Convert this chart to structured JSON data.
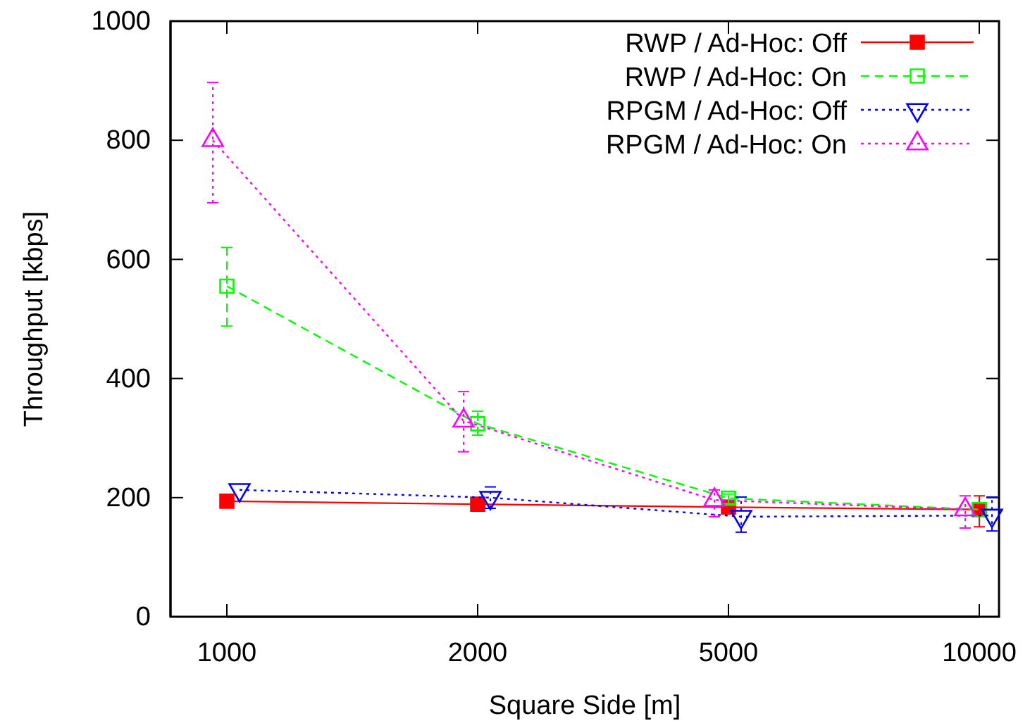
{
  "chart_data": {
    "type": "line",
    "xlabel": "Square Side [m]",
    "ylabel": "Throughput [kbps]",
    "categories": [
      "1000",
      "2000",
      "5000",
      "10000"
    ],
    "ylim": [
      0,
      1000
    ],
    "yticks": [
      0,
      200,
      400,
      600,
      800,
      1000
    ],
    "grid": false,
    "legend": "top right",
    "series": [
      {
        "name": "RWP / Ad-Hoc: Off",
        "color": "#ff0000",
        "values": [
          194,
          189,
          184,
          180
        ],
        "marker": "square",
        "line_style": "solid",
        "errors": [
          null,
          null,
          null,
          [
            151,
            203
          ]
        ]
      },
      {
        "name": "RWP / Ad-Hoc: On",
        "color": "#00ff00",
        "values": [
          555,
          324,
          199,
          180
        ],
        "marker": "square",
        "line_style": "dashed",
        "errors": [
          [
            488,
            620
          ],
          [
            305,
            345
          ],
          [
            190,
            206
          ],
          null
        ]
      },
      {
        "name": "RPGM / Ad-Hoc: Off",
        "color": "#0000ff",
        "values": [
          213,
          200,
          168,
          170
        ],
        "marker": "triangle-down",
        "line_style": "dotted",
        "errors": [
          null,
          [
            182,
            218
          ],
          [
            142,
            201
          ],
          [
            144,
            201
          ]
        ]
      },
      {
        "name": "RPGM / Ad-Hoc: On",
        "color": "#ff00ff",
        "values": [
          800,
          329,
          196,
          180
        ],
        "marker": "triangle",
        "line_style": "dotted",
        "errors": [
          [
            695,
            897
          ],
          [
            277,
            378
          ],
          [
            168,
            213
          ],
          [
            149,
            203
          ]
        ]
      }
    ]
  }
}
